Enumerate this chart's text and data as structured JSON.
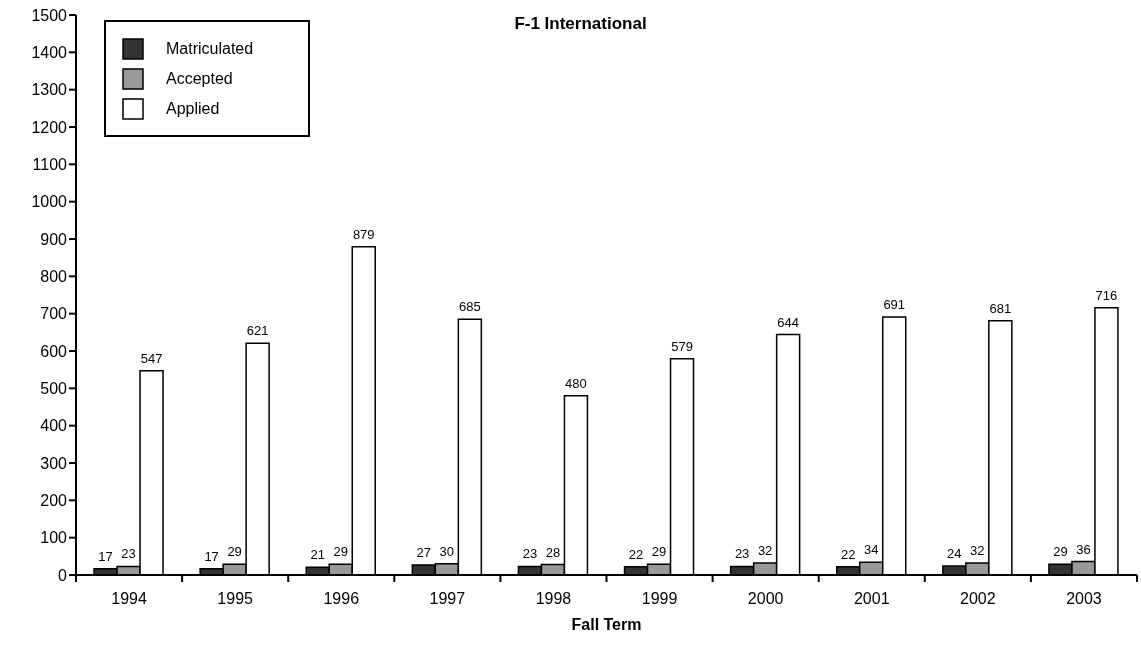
{
  "chart_data": {
    "type": "bar",
    "title": "F-1 International",
    "xlabel": "Fall Term",
    "categories": [
      "1994",
      "1995",
      "1996",
      "1997",
      "1998",
      "1999",
      "2000",
      "2001",
      "2002",
      "2003"
    ],
    "series": [
      {
        "name": "Matriculated",
        "color": "#333333",
        "values": [
          17,
          17,
          21,
          27,
          23,
          22,
          23,
          22,
          24,
          29
        ]
      },
      {
        "name": "Accepted",
        "color": "#999999",
        "values": [
          23,
          29,
          29,
          30,
          28,
          29,
          32,
          34,
          32,
          36
        ]
      },
      {
        "name": "Applied",
        "color": "#ffffff",
        "values": [
          547,
          621,
          879,
          685,
          480,
          579,
          644,
          691,
          681,
          716
        ]
      }
    ],
    "ylim": [
      0,
      1500
    ],
    "yticks": [
      0,
      100,
      200,
      300,
      400,
      500,
      600,
      700,
      800,
      900,
      1000,
      1100,
      1200,
      1300,
      1400,
      1500
    ],
    "legend": "top left",
    "data_labels": true
  }
}
